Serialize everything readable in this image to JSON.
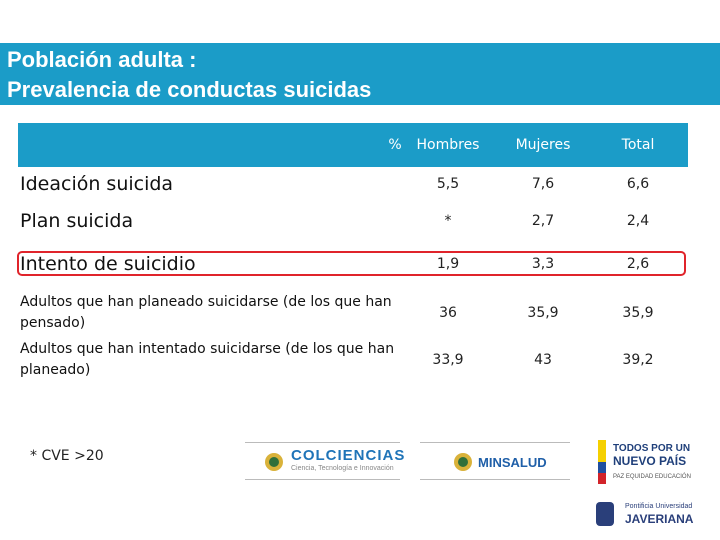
{
  "header": {
    "title": [
      "Población adulta :",
      "Prevalencia de conductas suicidas"
    ]
  },
  "table": {
    "columns": [
      "%",
      "Hombres",
      "Mujeres",
      "Total"
    ],
    "rows": [
      {
        "label": [
          "Ideación suicida"
        ],
        "values": [
          "5,5",
          "7,6",
          "6,6"
        ]
      },
      {
        "label": [
          "Plan suicida"
        ],
        "values": [
          "*",
          "2,7",
          "2,4"
        ]
      },
      {
        "label": [
          "Intento de suicidio"
        ],
        "values": [
          "1,9",
          "3,3",
          "2,6"
        ]
      },
      {
        "label": [
          "Adultos que han planeado suicidarse (de los que han pensado)"
        ],
        "values": [
          "36",
          "35,9",
          "35,9"
        ]
      },
      {
        "label": [
          "Adultos que han intentado suicidarse (de los que han planeado)"
        ],
        "values": [
          "33,9",
          "43",
          "39,2"
        ]
      }
    ]
  },
  "footnote": "* CVE >20",
  "logos": {
    "colciencias": "COLCIENCIAS",
    "colciencias_sub": "Ciencia, Tecnología e Innovación",
    "minsalud": "MINSALUD",
    "gobierno": [
      "TODOS POR UN",
      "NUEVO PAÍS"
    ],
    "gobierno_sub": "PAZ EQUIDAD EDUCACIÓN",
    "javeriana": [
      "Pontificia Universidad",
      "JAVERIANA"
    ]
  }
}
